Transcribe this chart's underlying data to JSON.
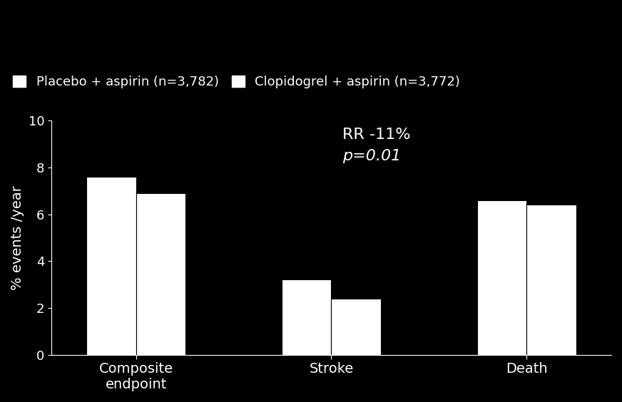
{
  "categories": [
    "Composite\nendpoint",
    "Stroke",
    "Death"
  ],
  "placebo_values": [
    7.6,
    3.2,
    6.6
  ],
  "clopi_values": [
    6.9,
    2.4,
    6.4
  ],
  "bar_color_placebo": "#ffffff",
  "bar_color_clopi": "#ffffff",
  "bar_edge_color": "#000000",
  "background_color": "#000000",
  "text_color": "#ffffff",
  "ylabel": "% events /year",
  "ylim": [
    0,
    10
  ],
  "yticks": [
    0,
    2,
    4,
    6,
    8,
    10
  ],
  "legend_label_1": "Placebo + aspirin (n=3,782)",
  "legend_label_2": "Clopidogrel + aspirin (n=3,772)",
  "annotation_rr": "RR -11%",
  "annotation_p": "p=0.01",
  "bar_width": 0.38,
  "group_positions": [
    1.0,
    2.5,
    4.0
  ],
  "axis_fontsize": 14,
  "tick_fontsize": 13,
  "legend_fontsize": 13,
  "annot_rr_fontsize": 16,
  "annot_p_fontsize": 16
}
